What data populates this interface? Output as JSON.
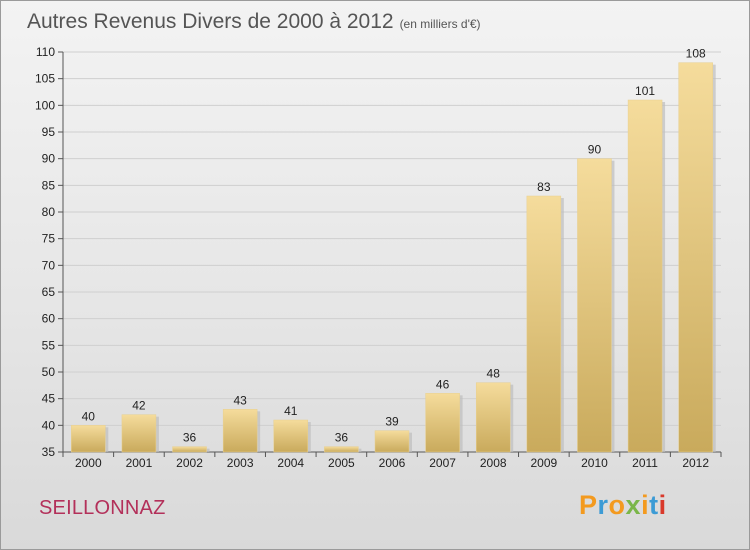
{
  "header": {
    "title": "Autres Revenus Divers de 2000 à 2012",
    "unit": "(en milliers d'€)"
  },
  "footer": {
    "commune": "SEILLONNAZ",
    "logo_text": "Proxiti"
  },
  "colors": {
    "bar_top": "#f5dc9c",
    "bar_bottom": "#c9aa5c",
    "commune": "#b3305a",
    "logo": [
      "#f39a1f",
      "#3c9bd5",
      "#f39a1f",
      "#7ab648",
      "#f39a1f",
      "#3c9bd5",
      "#d9392b"
    ]
  },
  "chart_data": {
    "type": "bar",
    "title": "Autres Revenus Divers de 2000 à 2012",
    "subtitle": "(en milliers d'€)",
    "xlabel": "",
    "ylabel": "",
    "categories": [
      "2000",
      "2001",
      "2002",
      "2003",
      "2004",
      "2005",
      "2006",
      "2007",
      "2008",
      "2009",
      "2010",
      "2011",
      "2012"
    ],
    "values": [
      40,
      42,
      36,
      43,
      41,
      36,
      39,
      46,
      48,
      83,
      90,
      101,
      108
    ],
    "ylim": [
      35,
      110
    ],
    "yticks": [
      35,
      40,
      45,
      50,
      55,
      60,
      65,
      70,
      75,
      80,
      85,
      90,
      95,
      100,
      105,
      110
    ],
    "grid": true,
    "legend": "none"
  }
}
